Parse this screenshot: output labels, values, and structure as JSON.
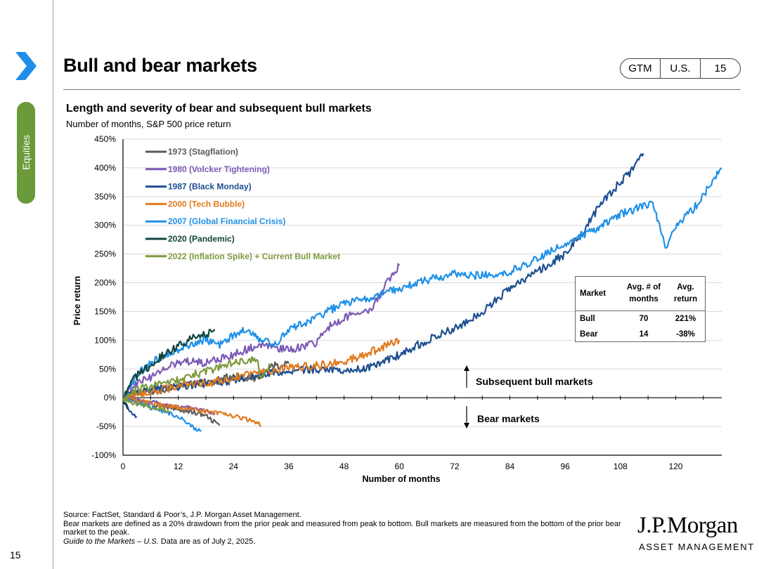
{
  "sidebar": {
    "section_label": "Equities",
    "page_number": "15"
  },
  "header": {
    "title": "Bull and bear markets",
    "tags": [
      "GTM",
      "U.S.",
      "15"
    ]
  },
  "chart_data": {
    "type": "line",
    "title": "Length and severity of bear and subsequent bull markets",
    "subtitle": "Number of months, S&P 500 price return",
    "xlabel": "Number of months",
    "ylabel": "Price return",
    "xlim": [
      0,
      130
    ],
    "ylim": [
      -100,
      450
    ],
    "xticks": [
      0,
      12,
      24,
      36,
      48,
      60,
      72,
      84,
      96,
      108,
      120
    ],
    "yticks": [
      -100,
      -50,
      0,
      50,
      100,
      150,
      200,
      250,
      300,
      350,
      400,
      450
    ],
    "ytick_labels": [
      "-100%",
      "-50%",
      "0%",
      "50%",
      "100%",
      "150%",
      "200%",
      "250%",
      "300%",
      "350%",
      "400%",
      "450%"
    ],
    "series": [
      {
        "name": "1973 (Stagflation)",
        "color": "#5a5a5a",
        "bear": [
          [
            0,
            0
          ],
          [
            3,
            -5
          ],
          [
            6,
            -10
          ],
          [
            9,
            -15
          ],
          [
            12,
            -20
          ],
          [
            15,
            -25
          ],
          [
            18,
            -32
          ],
          [
            21,
            -48
          ]
        ],
        "bull": [
          [
            0,
            0
          ],
          [
            3,
            8
          ],
          [
            6,
            12
          ],
          [
            9,
            15
          ],
          [
            12,
            20
          ],
          [
            15,
            25
          ],
          [
            18,
            28
          ],
          [
            21,
            30
          ],
          [
            24,
            40
          ],
          [
            27,
            28
          ],
          [
            30,
            42
          ],
          [
            33,
            55
          ],
          [
            36,
            60
          ]
        ]
      },
      {
        "name": "1980 (Volcker Tightening)",
        "color": "#7b5ab6",
        "bear": [
          [
            0,
            0
          ],
          [
            4,
            -6
          ],
          [
            8,
            -10
          ],
          [
            12,
            -16
          ],
          [
            16,
            -20
          ],
          [
            20,
            -27
          ]
        ],
        "bull": [
          [
            0,
            0
          ],
          [
            3,
            25
          ],
          [
            6,
            35
          ],
          [
            9,
            50
          ],
          [
            12,
            60
          ],
          [
            15,
            65
          ],
          [
            18,
            60
          ],
          [
            21,
            68
          ],
          [
            24,
            75
          ],
          [
            27,
            85
          ],
          [
            30,
            90
          ],
          [
            33,
            88
          ],
          [
            36,
            82
          ],
          [
            39,
            90
          ],
          [
            42,
            95
          ],
          [
            45,
            125
          ],
          [
            48,
            140
          ],
          [
            51,
            148
          ],
          [
            54,
            155
          ],
          [
            57,
            195
          ],
          [
            60,
            230
          ]
        ]
      },
      {
        "name": "1987 (Black Monday)",
        "color": "#1d4f91",
        "bear": [
          [
            0,
            0
          ],
          [
            1,
            -18
          ],
          [
            2,
            -25
          ],
          [
            3,
            -33
          ]
        ],
        "bull": [
          [
            0,
            0
          ],
          [
            6,
            15
          ],
          [
            12,
            20
          ],
          [
            18,
            25
          ],
          [
            24,
            30
          ],
          [
            30,
            40
          ],
          [
            36,
            48
          ],
          [
            42,
            50
          ],
          [
            48,
            45
          ],
          [
            54,
            55
          ],
          [
            60,
            75
          ],
          [
            66,
            100
          ],
          [
            72,
            120
          ],
          [
            78,
            150
          ],
          [
            84,
            190
          ],
          [
            90,
            220
          ],
          [
            96,
            250
          ],
          [
            100,
            290
          ],
          [
            104,
            340
          ],
          [
            108,
            375
          ],
          [
            111,
            400
          ],
          [
            113,
            425
          ]
        ]
      },
      {
        "name": "2000 (Tech Bubble)",
        "color": "#e07b1f",
        "bear": [
          [
            0,
            0
          ],
          [
            5,
            -8
          ],
          [
            10,
            -15
          ],
          [
            15,
            -20
          ],
          [
            20,
            -27
          ],
          [
            25,
            -33
          ],
          [
            28,
            -40
          ],
          [
            30,
            -48
          ]
        ],
        "bull": [
          [
            0,
            0
          ],
          [
            6,
            10
          ],
          [
            12,
            20
          ],
          [
            18,
            25
          ],
          [
            24,
            35
          ],
          [
            30,
            45
          ],
          [
            36,
            52
          ],
          [
            42,
            56
          ],
          [
            48,
            62
          ],
          [
            54,
            80
          ],
          [
            58,
            95
          ],
          [
            60,
            100
          ]
        ]
      },
      {
        "name": "2007 (Global Financial Crisis)",
        "color": "#1e90e8",
        "bear": [
          [
            0,
            0
          ],
          [
            4,
            -12
          ],
          [
            8,
            -22
          ],
          [
            12,
            -32
          ],
          [
            14,
            -45
          ],
          [
            16,
            -55
          ],
          [
            17,
            -57
          ]
        ],
        "bull": [
          [
            0,
            0
          ],
          [
            3,
            40
          ],
          [
            6,
            60
          ],
          [
            9,
            75
          ],
          [
            12,
            85
          ],
          [
            15,
            95
          ],
          [
            18,
            102
          ],
          [
            21,
            92
          ],
          [
            24,
            110
          ],
          [
            27,
            118
          ],
          [
            30,
            100
          ],
          [
            33,
            92
          ],
          [
            36,
            118
          ],
          [
            42,
            140
          ],
          [
            48,
            165
          ],
          [
            54,
            175
          ],
          [
            60,
            190
          ],
          [
            66,
            205
          ],
          [
            72,
            215
          ],
          [
            78,
            212
          ],
          [
            84,
            220
          ],
          [
            88,
            235
          ],
          [
            92,
            250
          ],
          [
            96,
            270
          ],
          [
            102,
            290
          ],
          [
            108,
            320
          ],
          [
            112,
            330
          ],
          [
            115,
            340
          ],
          [
            117,
            285
          ],
          [
            118,
            260
          ],
          [
            120,
            300
          ],
          [
            124,
            330
          ],
          [
            128,
            375
          ],
          [
            130,
            400
          ]
        ]
      },
      {
        "name": "2020 (Pandemic)",
        "color": "#12463e",
        "bear": [
          [
            0,
            0
          ],
          [
            0.5,
            -12
          ],
          [
            1,
            -20
          ]
        ],
        "bull": [
          [
            0,
            0
          ],
          [
            2,
            30
          ],
          [
            4,
            45
          ],
          [
            6,
            55
          ],
          [
            8,
            70
          ],
          [
            10,
            80
          ],
          [
            12,
            90
          ],
          [
            14,
            100
          ],
          [
            16,
            108
          ],
          [
            18,
            110
          ],
          [
            20,
            118
          ]
        ]
      },
      {
        "name": "2022 (Inflation Spike) + Current Bull Market",
        "color": "#7e9a3d",
        "bear": [
          [
            0,
            0
          ],
          [
            3,
            -12
          ],
          [
            6,
            -15
          ],
          [
            9,
            -22
          ],
          [
            10,
            -25
          ]
        ],
        "bull": [
          [
            0,
            0
          ],
          [
            3,
            15
          ],
          [
            6,
            20
          ],
          [
            9,
            25
          ],
          [
            12,
            30
          ],
          [
            15,
            40
          ],
          [
            18,
            45
          ],
          [
            21,
            52
          ],
          [
            24,
            60
          ],
          [
            27,
            65
          ],
          [
            29,
            70
          ],
          [
            30,
            30
          ],
          [
            31,
            45
          ],
          [
            32,
            55
          ]
        ]
      }
    ]
  },
  "table": {
    "headers": [
      "Market",
      "Avg. # of months",
      "Avg. return"
    ],
    "rows": [
      {
        "market": "Bull",
        "months": "70",
        "return": "221%"
      },
      {
        "market": "Bear",
        "months": "14",
        "return": "-38%"
      }
    ]
  },
  "annotations": {
    "bull": "Subsequent bull markets",
    "bear": "Bear markets"
  },
  "footer": {
    "source": "Source: FactSet, Standard & Poor’s, J.P. Morgan Asset Management.",
    "note": "Bear markets are defined as a 20% drawdown from the prior peak and measured from peak to bottom. Bull markets are measured from the bottom of the prior bear market to the peak.",
    "gtm_italic": "Guide to the Markets – U.S.",
    "date_text": " Data are as of July 2, 2025."
  },
  "logo": {
    "line1": "J.P.Morgan",
    "line2": "ASSET MANAGEMENT"
  }
}
